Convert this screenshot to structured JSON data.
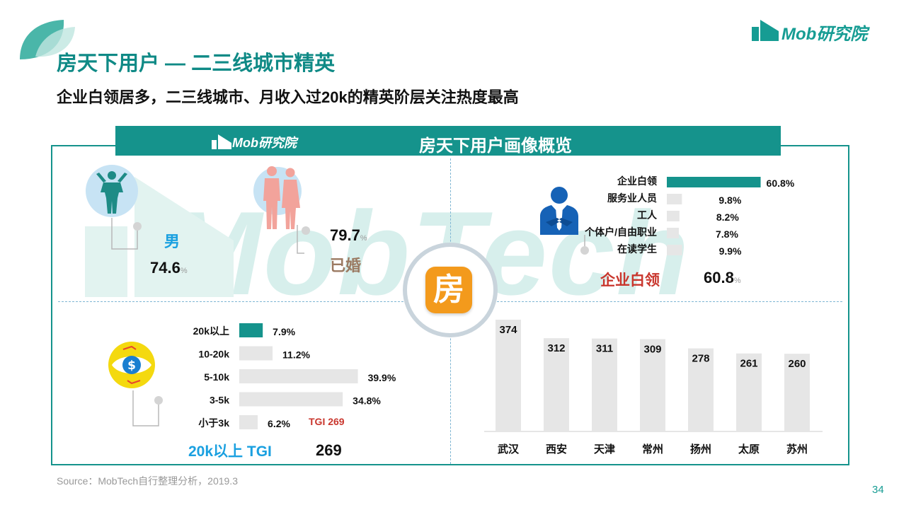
{
  "header": {
    "title": "房天下用户 — 二三线城市精英",
    "subtitle": "企业白领居多，二三线城市、月收入过20k的精英阶层关注热度最高",
    "logo_text": "Mob研究院"
  },
  "banner": {
    "logo_text": "Mob研究院",
    "title": "房天下用户画像概览"
  },
  "watermark": "MobTech",
  "gender": {
    "label": "男",
    "value": "74.6",
    "unit": "%"
  },
  "marital": {
    "label": "已婚",
    "value": "79.7",
    "unit": "%"
  },
  "center_icon_char": "房",
  "occupation": {
    "highlight_label": "企业白领",
    "highlight_value": "60.8",
    "unit": "%"
  },
  "income": {
    "highlight_label": "20k以上 TGI",
    "highlight_value": "269",
    "tgi_note": "TGI 269"
  },
  "chart_data": [
    {
      "type": "bar",
      "orientation": "horizontal",
      "categories": [
        "企业白领",
        "服务业人员",
        "工人",
        "个体户/自由职业",
        "在读学生"
      ],
      "values": [
        60.8,
        9.8,
        8.2,
        7.8,
        9.9
      ],
      "value_labels": [
        "60.8%",
        "9.8%",
        "8.2%",
        "7.8%",
        "9.9%"
      ],
      "xlim": [
        0,
        100
      ],
      "highlight_index": 0
    },
    {
      "type": "bar",
      "orientation": "horizontal",
      "categories": [
        "20k以上",
        "10-20k",
        "5-10k",
        "3-5k",
        "小于3k"
      ],
      "values": [
        7.9,
        11.2,
        39.9,
        34.8,
        6.2
      ],
      "value_labels": [
        "7.9%",
        "11.2%",
        "39.9%",
        "34.8%",
        "6.2%"
      ],
      "xlim": [
        0,
        100
      ],
      "highlight_index": 0
    },
    {
      "type": "bar",
      "orientation": "vertical",
      "categories": [
        "武汉",
        "西安",
        "天津",
        "常州",
        "扬州",
        "太原",
        "苏州"
      ],
      "values": [
        374,
        312,
        311,
        309,
        278,
        261,
        260
      ],
      "ylim": [
        0,
        374
      ]
    }
  ],
  "colors": {
    "accent": "#15938c",
    "bar_grey": "#e6e6e6",
    "highlight_red": "#c9362d",
    "blue_text": "#1aa0e0",
    "brown_text": "#9b7a62"
  },
  "footer": {
    "source": "Source：MobTech自行整理分析，2019.3",
    "page_number": "34"
  }
}
